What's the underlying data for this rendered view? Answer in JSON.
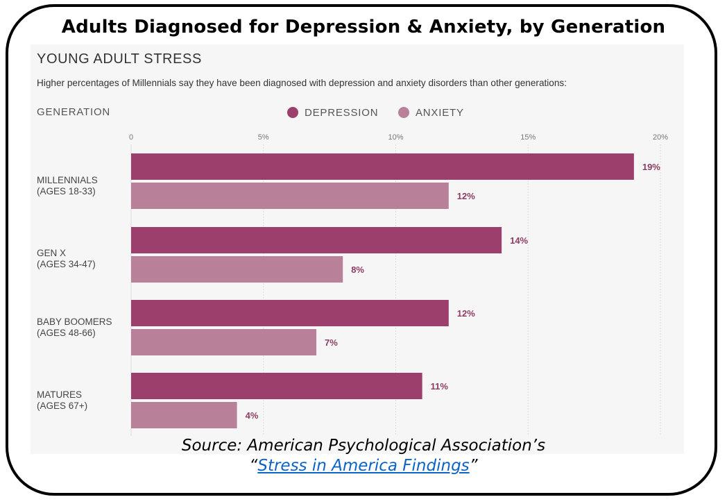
{
  "header": {
    "title": "Adults Diagnosed for Depression & Anxiety, by Generation"
  },
  "infographic": {
    "subtitle": "YOUNG ADULT STRESS",
    "description": "Higher percentages of Millennials say they have been diagnosed with depression and anxiety disorders than other generations:",
    "category_header": "GENERATION"
  },
  "footer": {
    "source_line": "Source: American Psychological Association’s",
    "quote_open": "“",
    "link_text": "Stress in America Findings",
    "quote_close": "”"
  },
  "chart_data": {
    "type": "bar",
    "orientation": "horizontal",
    "categories": [
      {
        "name": "MILLENNIALS",
        "ages": "(AGES 18-33)"
      },
      {
        "name": "GEN X",
        "ages": "(AGES 34-47)"
      },
      {
        "name": "BABY BOOMERS",
        "ages": "(AGES 48-66)"
      },
      {
        "name": "MATURES",
        "ages": "(AGES 67+)"
      }
    ],
    "series": [
      {
        "name": "DEPRESSION",
        "color": "#9c3f6d",
        "values": [
          19,
          14,
          12,
          11
        ],
        "labels": [
          "19%",
          "14%",
          "12%",
          "11%"
        ]
      },
      {
        "name": "ANXIETY",
        "color": "#b98099",
        "values": [
          12,
          8,
          7,
          4
        ],
        "labels": [
          "12%",
          "8%",
          "7%",
          "4%"
        ]
      }
    ],
    "x_ticks": [
      0,
      5,
      10,
      15,
      20
    ],
    "x_tick_labels": [
      "0",
      "5%",
      "10%",
      "15%",
      "20%"
    ],
    "xlim": [
      0,
      20
    ],
    "grid": true,
    "legend": "top",
    "label_color": "#8b3d63"
  }
}
